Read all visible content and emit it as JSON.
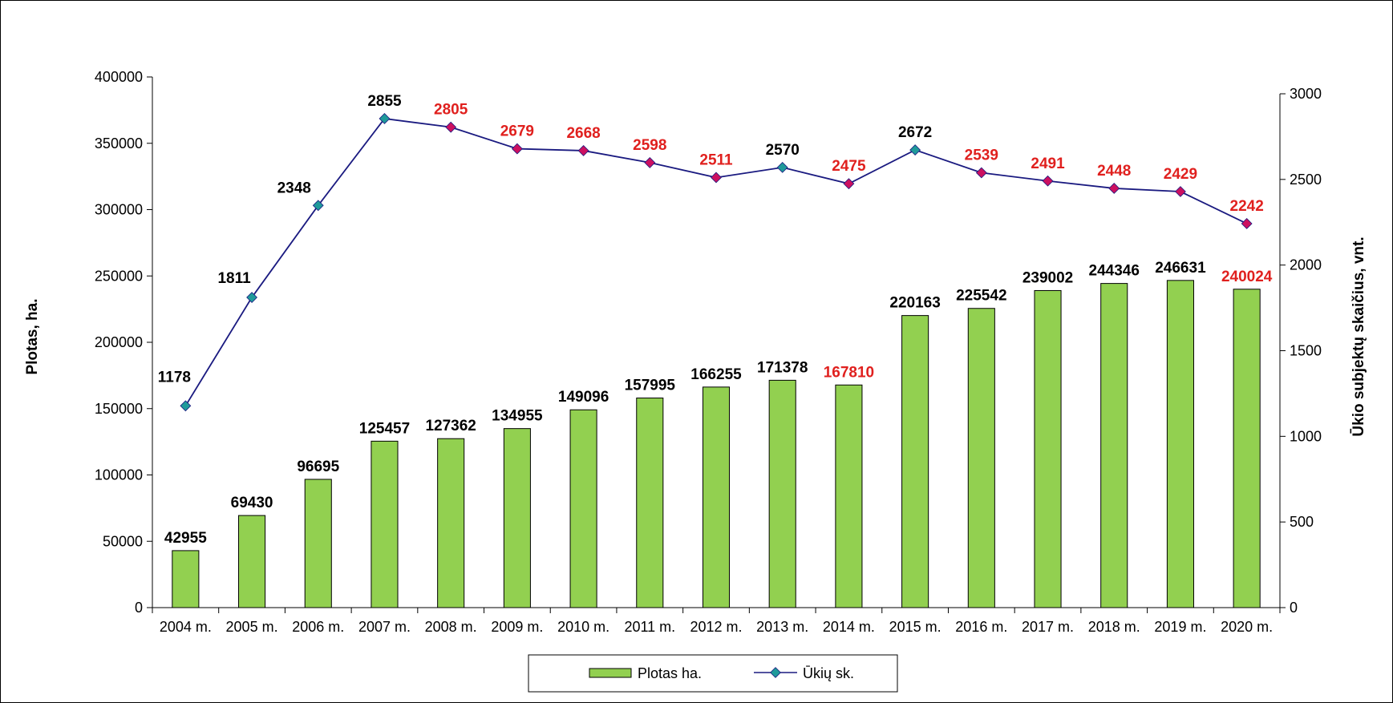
{
  "chart_data": {
    "type": "bar",
    "categories": [
      "2004 m.",
      "2005 m.",
      "2006 m.",
      "2007 m.",
      "2008 m.",
      "2009 m.",
      "2010 m.",
      "2011 m.",
      "2012 m.",
      "2013 m.",
      "2014 m.",
      "2015 m.",
      "2016 m.",
      "2017 m.",
      "2018 m.",
      "2019 m.",
      "2020 m."
    ],
    "ylabel": "Plotas, ha.",
    "y2label": "Ūkio subjektų skaičius, vnt.",
    "ylim": [
      0,
      400000
    ],
    "y2lim": [
      0,
      3000
    ],
    "yticks": [
      "0",
      "50000",
      "100000",
      "150000",
      "200000",
      "250000",
      "300000",
      "350000",
      "400000"
    ],
    "y2ticks": [
      "0",
      "500",
      "1000",
      "1500",
      "2000",
      "2500",
      "3000"
    ],
    "grid": false,
    "legend_position": "bottom",
    "series": [
      {
        "name": "Plotas ha.",
        "type": "bar",
        "axis": "left",
        "color": "#92d050",
        "values": [
          42955,
          69430,
          96695,
          125457,
          127362,
          134955,
          149096,
          157995,
          166255,
          171378,
          167810,
          220163,
          225542,
          239002,
          244346,
          246631,
          240024
        ],
        "label_colors": [
          "#000000",
          "#000000",
          "#000000",
          "#000000",
          "#000000",
          "#000000",
          "#000000",
          "#000000",
          "#000000",
          "#000000",
          "#e0201e",
          "#000000",
          "#000000",
          "#000000",
          "#000000",
          "#000000",
          "#e0201e"
        ]
      },
      {
        "name": "Ūkių sk.",
        "type": "line",
        "axis": "right",
        "color": "#1a1a80",
        "marker": "diamond",
        "values": [
          1178,
          1811,
          2348,
          2855,
          2805,
          2679,
          2668,
          2598,
          2511,
          2570,
          2475,
          2672,
          2539,
          2491,
          2448,
          2429,
          2242
        ],
        "marker_colors": [
          "#1f9a9a",
          "#1f9a9a",
          "#1f9a9a",
          "#1f9a9a",
          "#cc1060",
          "#cc1060",
          "#cc1060",
          "#cc1060",
          "#cc1060",
          "#1f9a9a",
          "#cc1060",
          "#1f9a9a",
          "#cc1060",
          "#cc1060",
          "#cc1060",
          "#cc1060",
          "#cc1060"
        ],
        "label_colors": [
          "#000000",
          "#000000",
          "#000000",
          "#000000",
          "#e0201e",
          "#e0201e",
          "#e0201e",
          "#e0201e",
          "#e0201e",
          "#000000",
          "#e0201e",
          "#000000",
          "#e0201e",
          "#e0201e",
          "#e0201e",
          "#e0201e",
          "#e0201e"
        ]
      }
    ]
  }
}
